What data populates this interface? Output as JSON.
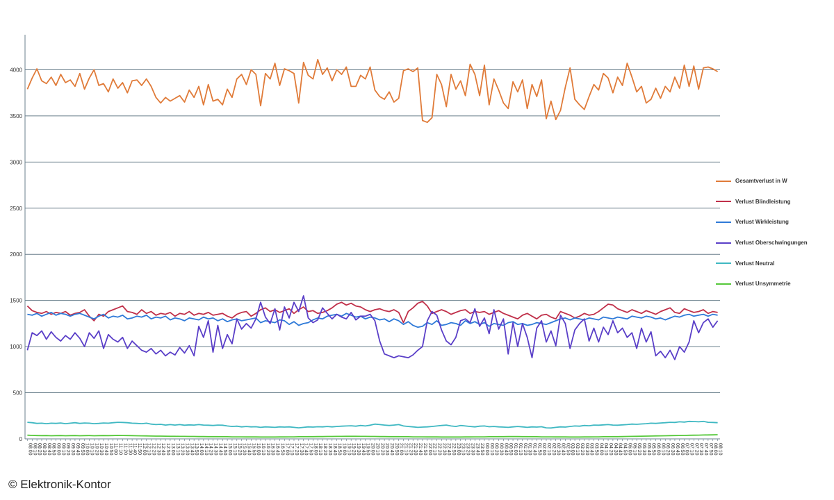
{
  "credit": "© Elektronik-Kontor",
  "chart_data": {
    "type": "line",
    "title": "",
    "xlabel": "",
    "ylabel": "",
    "ylim": [
      0,
      4500
    ],
    "yticks": [
      0,
      500,
      1000,
      1500,
      2000,
      2500,
      3000,
      3500,
      4000
    ],
    "grid": true,
    "legend_position": "right",
    "x": [
      "08:00",
      "08:10",
      "08:20",
      "08:30",
      "08:40",
      "08:50",
      "09:00",
      "09:10",
      "09:20",
      "09:30",
      "09:40",
      "09:50",
      "10:00",
      "10:10",
      "10:20",
      "10:30",
      "10:40",
      "10:50",
      "11:00",
      "11:10",
      "11:20",
      "11:30",
      "11:40",
      "11:50",
      "12:00",
      "12:10",
      "12:20",
      "12:30",
      "12:40",
      "12:50",
      "13:00",
      "13:10",
      "13:20",
      "13:30",
      "13:40",
      "13:50",
      "14:00",
      "14:10",
      "14:20",
      "14:30",
      "14:40",
      "14:50",
      "15:00",
      "15:10",
      "15:20",
      "15:30",
      "15:40",
      "15:50",
      "16:00",
      "16:10",
      "16:20",
      "16:30",
      "16:40",
      "16:50",
      "17:00",
      "17:10",
      "17:20",
      "17:30",
      "17:40",
      "17:50",
      "18:00",
      "18:10",
      "18:20",
      "18:30",
      "18:40",
      "18:50",
      "19:00",
      "19:10",
      "19:20",
      "19:30",
      "19:40",
      "19:50",
      "20:00",
      "20:10",
      "20:20",
      "20:30",
      "20:40",
      "20:50",
      "21:00",
      "21:10",
      "21:20",
      "21:30",
      "21:40",
      "21:50",
      "22:00",
      "22:10",
      "22:20",
      "22:30",
      "22:40",
      "22:50",
      "23:00",
      "23:10",
      "23:20",
      "23:30",
      "23:40",
      "23:50",
      "00:00",
      "00:10",
      "00:20",
      "00:30",
      "00:40",
      "00:50",
      "01:00",
      "01:10",
      "01:20",
      "01:30",
      "01:40",
      "01:50",
      "02:00",
      "02:10",
      "02:20",
      "02:30",
      "02:40",
      "02:50",
      "03:00",
      "03:10",
      "03:20",
      "03:30",
      "03:40",
      "03:50",
      "04:00",
      "04:10",
      "04:20",
      "04:30",
      "04:40",
      "04:50",
      "05:00",
      "05:10",
      "05:20",
      "05:30",
      "05:40",
      "05:50",
      "06:00",
      "06:10",
      "06:20",
      "06:30",
      "06:40",
      "06:50",
      "07:00",
      "07:10",
      "07:20",
      "07:30",
      "07:40",
      "07:50",
      "08:00",
      "08:10"
    ],
    "x_tick_every": 1,
    "series": [
      {
        "name": "Gesamtverlust in W",
        "color": "#e07b39",
        "values": [
          3790,
          3910,
          4010,
          3880,
          3850,
          3920,
          3830,
          3950,
          3860,
          3890,
          3820,
          3960,
          3790,
          3910,
          4000,
          3830,
          3850,
          3760,
          3900,
          3800,
          3860,
          3750,
          3880,
          3890,
          3830,
          3900,
          3820,
          3700,
          3640,
          3700,
          3660,
          3690,
          3720,
          3650,
          3780,
          3700,
          3820,
          3620,
          3840,
          3660,
          3680,
          3620,
          3790,
          3700,
          3900,
          3950,
          3840,
          4000,
          3950,
          3610,
          3960,
          3900,
          4070,
          3830,
          4010,
          3990,
          3960,
          3640,
          4080,
          3940,
          3900,
          4110,
          3950,
          4020,
          3880,
          4000,
          3950,
          4030,
          3820,
          3820,
          3940,
          3900,
          4030,
          3780,
          3710,
          3680,
          3760,
          3650,
          3690,
          3990,
          4010,
          3980,
          4020,
          3450,
          3430,
          3480,
          3950,
          3840,
          3600,
          3950,
          3790,
          3880,
          3720,
          4060,
          3950,
          3720,
          4050,
          3620,
          3900,
          3780,
          3640,
          3580,
          3870,
          3760,
          3890,
          3580,
          3840,
          3710,
          3890,
          3470,
          3660,
          3460,
          3560,
          3810,
          4020,
          3680,
          3620,
          3570,
          3710,
          3840,
          3780,
          3960,
          3910,
          3750,
          3920,
          3830,
          4070,
          3920,
          3760,
          3820,
          3640,
          3680,
          3800,
          3690,
          3820,
          3760,
          3920,
          3800,
          4050,
          3820,
          4040,
          3790,
          4020,
          4030,
          4010,
          3980
        ]
      },
      {
        "name": "Verlust Blindleistung",
        "color": "#c0304a",
        "values": [
          1440,
          1390,
          1370,
          1360,
          1380,
          1350,
          1370,
          1360,
          1380,
          1340,
          1360,
          1370,
          1400,
          1330,
          1280,
          1350,
          1330,
          1380,
          1400,
          1420,
          1440,
          1380,
          1370,
          1350,
          1400,
          1360,
          1380,
          1340,
          1360,
          1350,
          1370,
          1330,
          1360,
          1350,
          1380,
          1340,
          1360,
          1350,
          1370,
          1340,
          1350,
          1360,
          1330,
          1310,
          1350,
          1370,
          1380,
          1330,
          1360,
          1400,
          1420,
          1380,
          1400,
          1370,
          1390,
          1410,
          1360,
          1400,
          1430,
          1380,
          1390,
          1360,
          1370,
          1390,
          1420,
          1460,
          1480,
          1450,
          1470,
          1440,
          1430,
          1400,
          1380,
          1400,
          1410,
          1390,
          1380,
          1400,
          1370,
          1260,
          1380,
          1420,
          1470,
          1490,
          1440,
          1360,
          1380,
          1400,
          1380,
          1350,
          1370,
          1390,
          1400,
          1360,
          1380,
          1370,
          1380,
          1350,
          1370,
          1390,
          1360,
          1340,
          1320,
          1300,
          1340,
          1360,
          1330,
          1300,
          1340,
          1350,
          1320,
          1300,
          1380,
          1360,
          1340,
          1310,
          1330,
          1360,
          1340,
          1350,
          1380,
          1420,
          1460,
          1450,
          1410,
          1390,
          1370,
          1400,
          1380,
          1360,
          1390,
          1370,
          1350,
          1380,
          1400,
          1420,
          1370,
          1360,
          1410,
          1390,
          1370,
          1380,
          1400,
          1360,
          1380,
          1370
        ]
      },
      {
        "name": "Verlust Wirkleistung",
        "color": "#2f7ad8",
        "values": [
          1350,
          1340,
          1360,
          1330,
          1350,
          1370,
          1340,
          1360,
          1350,
          1330,
          1350,
          1360,
          1340,
          1320,
          1300,
          1330,
          1350,
          1310,
          1330,
          1320,
          1340,
          1300,
          1310,
          1330,
          1320,
          1340,
          1300,
          1320,
          1310,
          1330,
          1290,
          1310,
          1300,
          1280,
          1310,
          1300,
          1290,
          1320,
          1300,
          1310,
          1280,
          1300,
          1270,
          1290,
          1300,
          1280,
          1290,
          1300,
          1310,
          1260,
          1280,
          1270,
          1260,
          1290,
          1280,
          1240,
          1270,
          1230,
          1250,
          1260,
          1290,
          1310,
          1300,
          1330,
          1340,
          1350,
          1330,
          1360,
          1340,
          1320,
          1330,
          1300,
          1320,
          1310,
          1290,
          1300,
          1270,
          1300,
          1280,
          1240,
          1270,
          1230,
          1210,
          1220,
          1260,
          1240,
          1280,
          1230,
          1240,
          1260,
          1250,
          1230,
          1280,
          1250,
          1270,
          1240,
          1260,
          1220,
          1250,
          1240,
          1230,
          1260,
          1270,
          1240,
          1250,
          1230,
          1240,
          1260,
          1250,
          1240,
          1260,
          1280,
          1300,
          1310,
          1290,
          1310,
          1300,
          1290,
          1310,
          1300,
          1290,
          1320,
          1310,
          1300,
          1320,
          1310,
          1300,
          1330,
          1320,
          1310,
          1330,
          1320,
          1300,
          1310,
          1290,
          1310,
          1330,
          1320,
          1340,
          1350,
          1330,
          1340,
          1350,
          1330,
          1350,
          1340
        ]
      },
      {
        "name": "Verlust Oberschwingungen",
        "color": "#5a3fc8",
        "values": [
          960,
          1150,
          1120,
          1170,
          1080,
          1160,
          1100,
          1060,
          1120,
          1080,
          1150,
          1090,
          1000,
          1150,
          1090,
          1170,
          980,
          1130,
          1080,
          1050,
          1100,
          980,
          1060,
          1010,
          960,
          940,
          980,
          920,
          960,
          900,
          940,
          910,
          990,
          930,
          1010,
          900,
          1220,
          1100,
          1280,
          940,
          1230,
          980,
          1130,
          1030,
          1300,
          1190,
          1250,
          1200,
          1300,
          1480,
          1320,
          1250,
          1410,
          1180,
          1430,
          1310,
          1480,
          1380,
          1550,
          1310,
          1260,
          1290,
          1420,
          1360,
          1300,
          1350,
          1320,
          1300,
          1370,
          1290,
          1330,
          1330,
          1350,
          1280,
          1060,
          920,
          900,
          880,
          900,
          890,
          880,
          910,
          960,
          1000,
          1280,
          1380,
          1340,
          1180,
          1060,
          1020,
          1100,
          1280,
          1300,
          1260,
          1410,
          1220,
          1310,
          1140,
          1400,
          1190,
          1300,
          920,
          1260,
          1000,
          1250,
          1100,
          880,
          1200,
          1280,
          1050,
          1170,
          1010,
          1340,
          1250,
          980,
          1180,
          1250,
          1300,
          1060,
          1200,
          1050,
          1210,
          1130,
          1280,
          1150,
          1200,
          1100,
          1150,
          980,
          1200,
          1050,
          1160,
          900,
          950,
          880,
          960,
          860,
          1000,
          940,
          1050,
          1280,
          1150,
          1260,
          1300,
          1210,
          1280
        ]
      },
      {
        "name": "Verlust Neutral",
        "color": "#3fb8c2",
        "values": [
          180,
          175,
          168,
          170,
          165,
          170,
          168,
          172,
          165,
          170,
          175,
          168,
          172,
          170,
          165,
          168,
          172,
          170,
          175,
          180,
          178,
          175,
          170,
          168,
          165,
          170,
          160,
          155,
          158,
          150,
          155,
          150,
          155,
          148,
          152,
          150,
          155,
          150,
          148,
          145,
          150,
          148,
          140,
          135,
          138,
          130,
          135,
          130,
          132,
          125,
          130,
          128,
          125,
          130,
          128,
          130,
          125,
          120,
          125,
          130,
          128,
          132,
          130,
          135,
          130,
          135,
          138,
          140,
          142,
          138,
          145,
          140,
          148,
          160,
          155,
          150,
          145,
          150,
          155,
          140,
          135,
          130,
          125,
          128,
          130,
          135,
          140,
          145,
          150,
          140,
          135,
          145,
          140,
          135,
          130,
          138,
          140,
          132,
          135,
          130,
          128,
          125,
          130,
          135,
          130,
          125,
          130,
          128,
          132,
          120,
          118,
          125,
          130,
          128,
          135,
          140,
          138,
          145,
          142,
          150,
          148,
          152,
          155,
          150,
          148,
          152,
          155,
          160,
          158,
          162,
          165,
          170,
          168,
          172,
          175,
          180,
          178,
          185,
          182,
          190,
          188,
          185,
          190,
          180,
          178,
          175
        ]
      },
      {
        "name": "Verlust Unsymmetrie",
        "color": "#55c83a",
        "values": [
          40,
          38,
          36,
          35,
          36,
          34,
          35,
          36,
          34,
          35,
          36,
          34,
          35,
          36,
          34,
          35,
          36,
          35,
          36,
          38,
          37,
          36,
          35,
          34,
          33,
          32,
          31,
          30,
          30,
          29,
          28,
          28,
          27,
          27,
          26,
          26,
          25,
          25,
          24,
          24,
          24,
          23,
          23,
          22,
          22,
          22,
          21,
          21,
          21,
          20,
          20,
          20,
          20,
          21,
          21,
          22,
          22,
          23,
          23,
          24,
          24,
          25,
          25,
          26,
          26,
          27,
          27,
          28,
          28,
          28,
          27,
          27,
          26,
          26,
          25,
          25,
          24,
          24,
          24,
          23,
          23,
          22,
          22,
          22,
          21,
          21,
          21,
          20,
          20,
          20,
          20,
          20,
          21,
          21,
          22,
          22,
          22,
          23,
          23,
          24,
          24,
          25,
          25,
          25,
          24,
          24,
          23,
          23,
          22,
          22,
          22,
          21,
          21,
          21,
          20,
          20,
          20,
          21,
          21,
          22,
          22,
          23,
          23,
          24,
          24,
          25,
          26,
          27,
          28,
          29,
          30,
          31,
          32,
          33,
          34,
          35,
          36,
          37,
          38,
          39,
          40,
          41,
          42,
          43,
          44,
          45
        ]
      }
    ]
  }
}
